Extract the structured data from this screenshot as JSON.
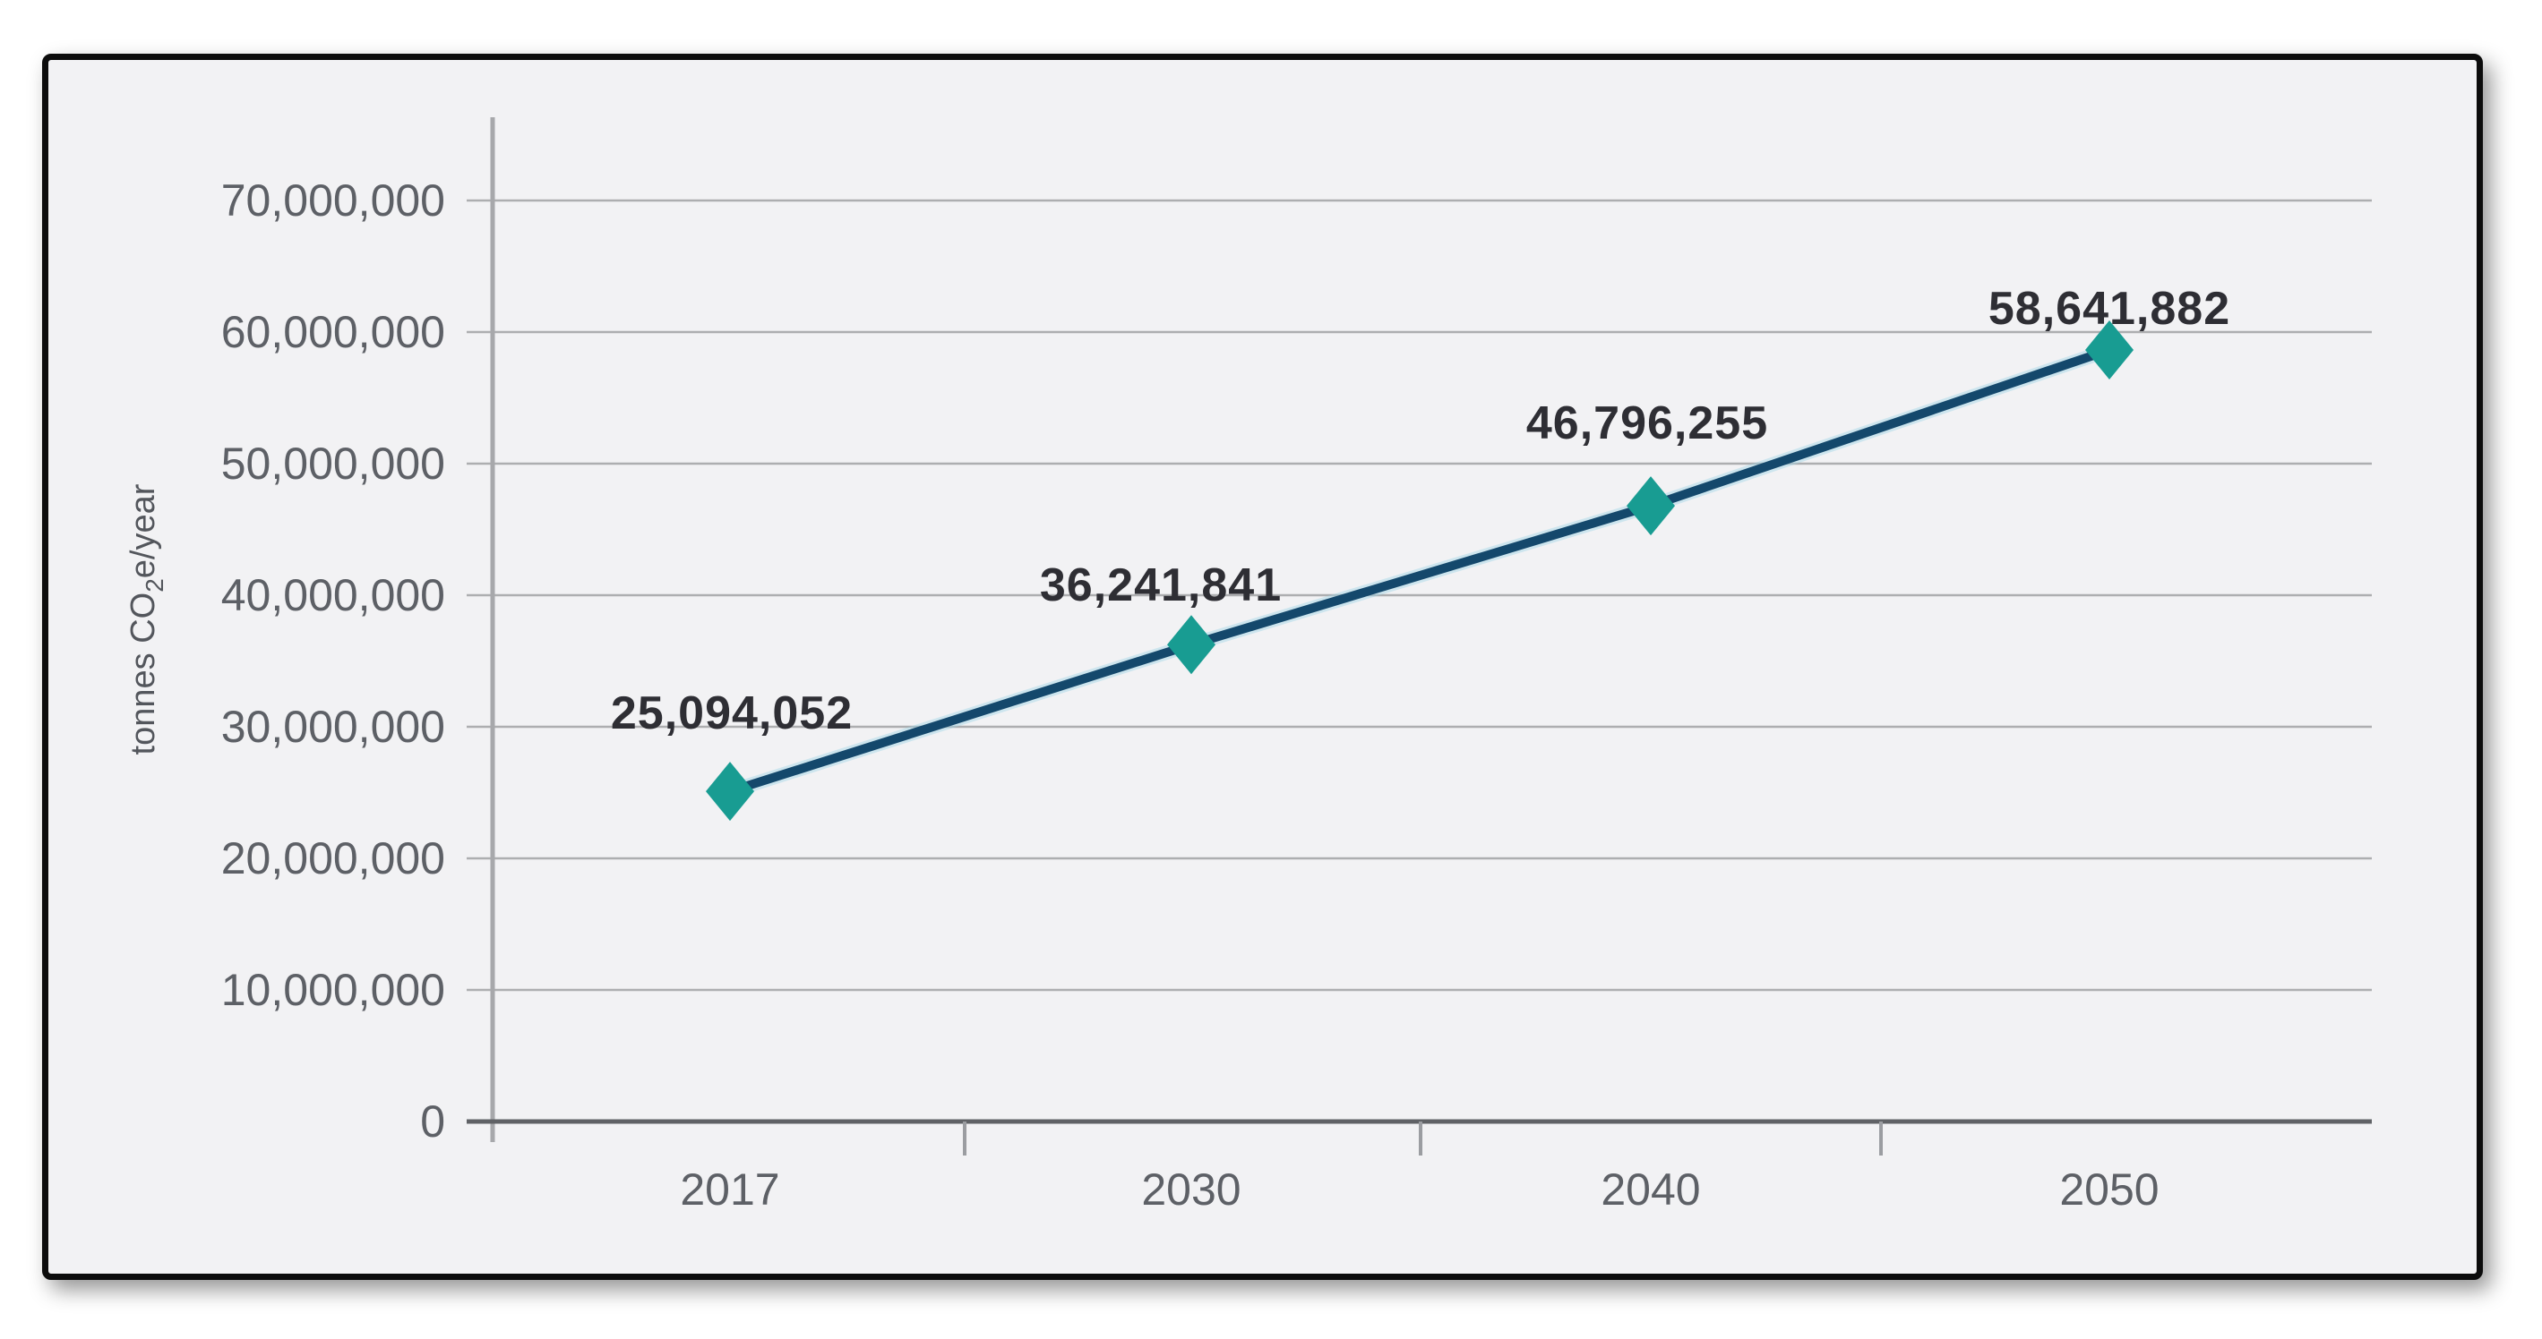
{
  "page": {
    "background": "#FFFFFF"
  },
  "frame": {
    "background": "#F2F2F4",
    "border_color": "#0C0C0C"
  },
  "chart_data": {
    "type": "line",
    "title": "",
    "categories": [
      "2017",
      "2030",
      "2040",
      "2050"
    ],
    "series": [
      {
        "name": "tonnes CO2e/year",
        "values": [
          25094052,
          36241841,
          46796255,
          58641882
        ],
        "point_labels": [
          "25,094,052",
          "36,241,841",
          "46,796,255",
          "58,641,882"
        ],
        "line_color": "#14486C",
        "line_halo_color": "#9FD4E6",
        "marker": "diamond",
        "marker_color": "#189C92"
      }
    ],
    "xlabel": "",
    "ylabel": "tonnes CO2e/year",
    "ylabel_rich": {
      "pre": "tonnes CO",
      "sub": "2",
      "post": "e/year"
    },
    "ylim": [
      0,
      70000000
    ],
    "y_tick_values": [
      0,
      10000000,
      20000000,
      30000000,
      40000000,
      50000000,
      60000000,
      70000000
    ],
    "y_tick_labels": [
      "0",
      "10,000,000",
      "20,000,000",
      "30,000,000",
      "40,000,000",
      "50,000,000",
      "60,000,000",
      "70,000,000"
    ],
    "grid": true,
    "legend": "none",
    "colors": {
      "grid_color": "#ADAEB0",
      "x_axis_color": "#606266",
      "y_axis_color": "#A7A8AB",
      "x_tick_color": "#9B9DA1",
      "tick_label_color": "#5D6066",
      "point_label_color": "#2E2E34",
      "ylabel_color": "#53565C",
      "plot_bg": "#F2F2F4"
    }
  }
}
